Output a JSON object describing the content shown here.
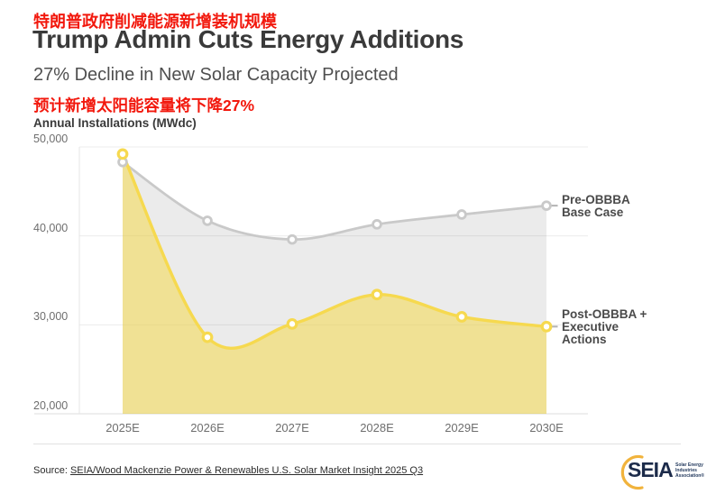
{
  "header": {
    "title_zh": "特朗普政府削减能源新增装机规模",
    "title": "Trump Admin Cuts Energy Additions",
    "subtitle": "27% Decline in New Solar Capacity Projected",
    "subtitle_zh": "预计新增太阳能容量将下降27%"
  },
  "chart_data": {
    "type": "area",
    "title": "Trump Admin Cuts Energy Additions",
    "ylabel": "Annual Installations (MWdc)",
    "categories": [
      "2025E",
      "2026E",
      "2027E",
      "2028E",
      "2029E",
      "2030E"
    ],
    "ylim": [
      20000,
      50000
    ],
    "grid": "horizontal",
    "tick_values": [
      50000,
      40000,
      30000,
      20000
    ],
    "y_ticks": [
      "50,000",
      "40,000",
      "30,000",
      "20,000"
    ],
    "legend_position": "right-annotations",
    "series": [
      {
        "name": "Pre-OBBBA Base Case",
        "annotation": "Pre-OBBBA\nBase Case",
        "color": "#c9c9c9",
        "fill": "rgba(0,0,0,0.08)",
        "values": [
          48300,
          41700,
          39600,
          41300,
          42400,
          43400
        ]
      },
      {
        "name": "Post-OBBBA + Executive Actions",
        "annotation": "Post-OBBBA +\nExecutive\nActions",
        "color": "#f6d94f",
        "fill": "rgba(244,216,77,0.55)",
        "values": [
          49200,
          28600,
          30100,
          33400,
          30900,
          29800
        ]
      }
    ]
  },
  "footer": {
    "source_prefix": "Source: ",
    "source_link": "SEIA/Wood Mackenzie Power & Renewables U.S. Solar Market Insight 2025 Q3",
    "logo": {
      "text": "SEIA",
      "tagline_lines": [
        "Solar Energy",
        "Industries",
        "Association®"
      ]
    }
  },
  "colors": {
    "accent_red": "#f2180d",
    "title_color": "#3a3a3a",
    "gridline": "#ececec",
    "axis_line": "#dcdcdc",
    "annotation_dash": "#b3b3b3"
  }
}
